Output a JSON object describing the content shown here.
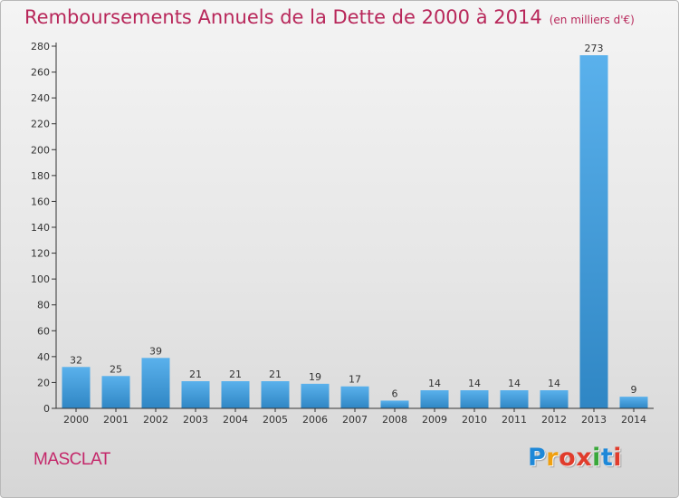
{
  "header": {
    "title": "Remboursements Annuels de la Dette de 2000 à 2014",
    "unit": "(en milliers d'€)"
  },
  "footer": {
    "commune": "MASCLAT",
    "logo_text": "Proxiti",
    "logo_letters": [
      "P",
      "r",
      "o",
      "x",
      "i",
      "t",
      "i"
    ],
    "logo_colors": [
      "#1e88d8",
      "#f0a010",
      "#e03c2c",
      "#e03c2c",
      "#3aa83a",
      "#1e88d8",
      "#e03c2c"
    ]
  },
  "colors": {
    "bar_top": "#5ab1ec",
    "bar_bottom": "#2f86c4",
    "title": "#b8275a",
    "axis": "#333333"
  },
  "chart_data": {
    "type": "bar",
    "title": "Remboursements Annuels de la Dette de 2000 à 2014",
    "subtitle": "(en milliers d'€)",
    "xlabel": "",
    "ylabel": "",
    "categories": [
      "2000",
      "2001",
      "2002",
      "2003",
      "2004",
      "2005",
      "2006",
      "2007",
      "2008",
      "2009",
      "2010",
      "2011",
      "2012",
      "2013",
      "2014"
    ],
    "values": [
      32,
      25,
      39,
      21,
      21,
      21,
      19,
      17,
      6,
      14,
      14,
      14,
      14,
      273,
      9
    ],
    "ylim": [
      0,
      280
    ],
    "yticks": [
      0,
      20,
      40,
      60,
      80,
      100,
      120,
      140,
      160,
      180,
      200,
      220,
      240,
      260,
      280
    ],
    "grid": false,
    "legend": "none"
  }
}
